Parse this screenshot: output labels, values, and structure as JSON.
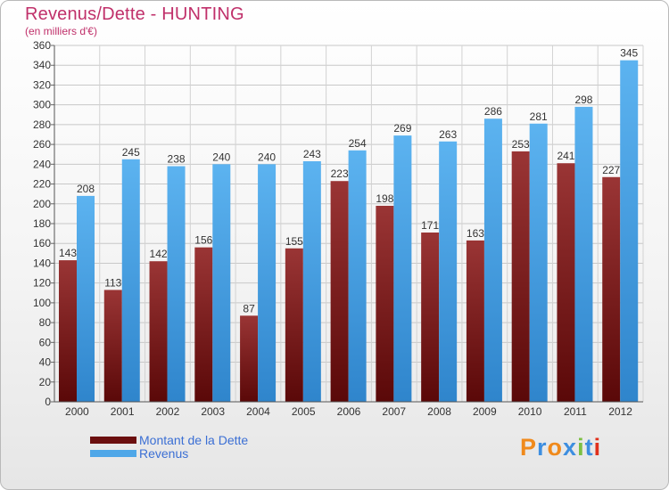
{
  "header": {
    "title": "Revenus/Dette - HUNTING",
    "subtitle": "(en milliers d'€)"
  },
  "chart_data": {
    "type": "bar",
    "title": "Revenus/Dette - HUNTING",
    "ylabel": "(en milliers d'€)",
    "ylim": [
      0,
      360
    ],
    "ytick_step": 20,
    "grid": true,
    "legend_position": "bottom-left",
    "categories": [
      "2000",
      "2001",
      "2002",
      "2003",
      "2004",
      "2005",
      "2006",
      "2007",
      "2008",
      "2009",
      "2010",
      "2011",
      "2012"
    ],
    "series": [
      {
        "name": "Montant de la Dette",
        "color": "#7a1a1a",
        "values": [
          143,
          113,
          142,
          156,
          87,
          155,
          223,
          198,
          171,
          163,
          253,
          241,
          227
        ]
      },
      {
        "name": "Revenus",
        "color": "#4fa7e8",
        "values": [
          208,
          245,
          238,
          240,
          240,
          243,
          254,
          269,
          263,
          286,
          281,
          298,
          345
        ]
      }
    ]
  },
  "legend": {
    "items": [
      {
        "label": "Montant de la Dette",
        "color": "#6b0f0f"
      },
      {
        "label": "Revenus",
        "color": "#4fa7e8"
      }
    ]
  },
  "logo": {
    "letters": [
      "P",
      "r",
      "o",
      "x",
      "i",
      "t",
      "i"
    ],
    "colors": [
      "#f08a1c",
      "#3d8ee0",
      "#f08a1c",
      "#3d8ee0",
      "#7cc043",
      "#3d8ee0",
      "#e0301c"
    ]
  }
}
